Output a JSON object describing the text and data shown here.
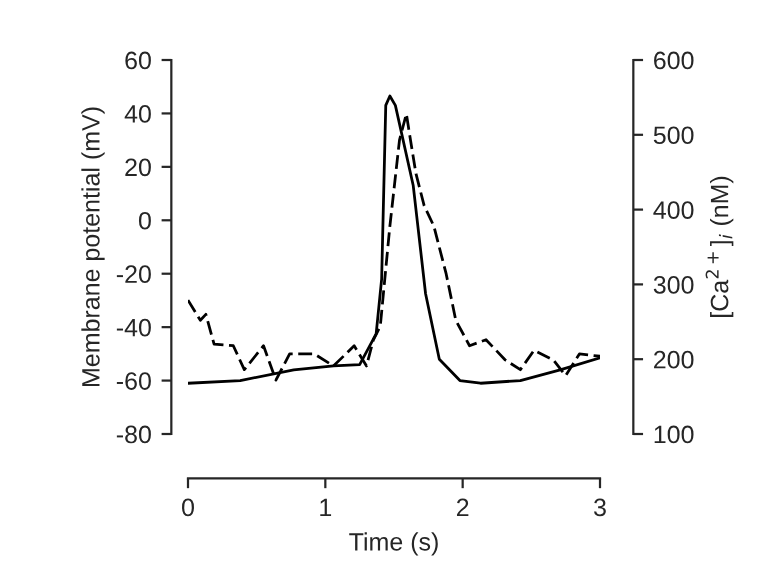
{
  "chart_data": {
    "type": "line",
    "xlabel": "Time (s)",
    "ylabel": "Membrane potential (mV)",
    "y2label": "[Ca$^{2+}$]$_{i}$ (nM)",
    "xlim": [
      0,
      3
    ],
    "xticks": [
      0,
      1,
      2,
      3
    ],
    "ylim": [
      -80,
      60
    ],
    "yticks": [
      -80,
      -60,
      -40,
      -20,
      0,
      20,
      40,
      60
    ],
    "y2lim": [
      100,
      600
    ],
    "y2ticks": [
      100,
      200,
      300,
      400,
      500,
      600
    ],
    "grid": false,
    "legend": false,
    "marker": "none",
    "series": [
      {
        "color": "#000000",
        "line_style": "solid",
        "x": [
          0,
          0.38,
          0.77,
          1.06,
          1.25,
          1.37,
          1.41,
          1.44,
          1.47,
          1.51,
          1.64,
          1.73,
          1.83,
          1.98,
          2.13,
          2.42,
          2.71,
          3.0
        ],
        "values": [
          -61,
          -60,
          -56,
          -54.5,
          -54,
          -42.5,
          -22,
          43,
          46.5,
          43,
          13,
          -27.5,
          -52,
          -60,
          -61,
          -60,
          -56,
          -51.5
        ]
      },
      {
        "color": "#000000",
        "line_style": "dashed",
        "axis": "y2",
        "x": [
          0,
          0.09,
          0.13,
          0.19,
          0.33,
          0.41,
          0.55,
          0.64,
          0.74,
          0.92,
          1.06,
          1.21,
          1.3,
          1.35,
          1.4,
          1.47,
          1.54,
          1.59,
          1.62,
          1.66,
          1.72,
          1.79,
          1.88,
          1.95,
          2.05,
          2.17,
          2.31,
          2.42,
          2.52,
          2.66,
          2.75,
          2.85,
          3.0
        ],
        "values": [
          279,
          252,
          260,
          220,
          218,
          186,
          218,
          172,
          207,
          207,
          191,
          218,
          191,
          226,
          244,
          378,
          493,
          528,
          493,
          448,
          405,
          378,
          314,
          252,
          218,
          226,
          199,
          186,
          212,
          199,
          178,
          207,
          204
        ]
      }
    ]
  }
}
